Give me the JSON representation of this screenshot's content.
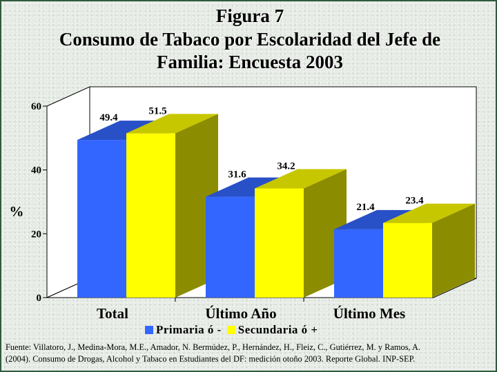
{
  "title": {
    "line1": "Figura 7",
    "line2": "Consumo de Tabaco por Escolaridad del Jefe de",
    "line3": "Familia: Encuesta 2003"
  },
  "chart_data": {
    "type": "bar",
    "categories": [
      "Total",
      "Último Año",
      "Último Mes"
    ],
    "series": [
      {
        "name": "Primaria ó -",
        "values": [
          49.4,
          31.6,
          21.4
        ],
        "color": "#3366ff"
      },
      {
        "name": "Secundaria ó +",
        "values": [
          51.5,
          34.2,
          23.4
        ],
        "color": "#ffff00"
      }
    ],
    "data_labels": [
      [
        "49.4",
        "31.6",
        "21.4"
      ],
      [
        "51.5",
        "34.2",
        "23.4"
      ]
    ],
    "ylabel": "%",
    "ylim": [
      0,
      60
    ],
    "yticks": [
      "0",
      "20",
      "40",
      "60"
    ],
    "grid": false,
    "legend_position": "bottom",
    "projection": "3d"
  },
  "footnote": {
    "line1": "Fuente: Villatoro, J., Medina-Mora, M.E., Amador, N. Bermúdez, P., Hernández, H., Fleiz, C., Gutiérrez, M. y Ramos, A.",
    "line2": "(2004). Consumo de Drogas, Alcohol y Tabaco en Estudiantes del DF: medición otoño 2003. Reporte Global. INP-SEP."
  }
}
